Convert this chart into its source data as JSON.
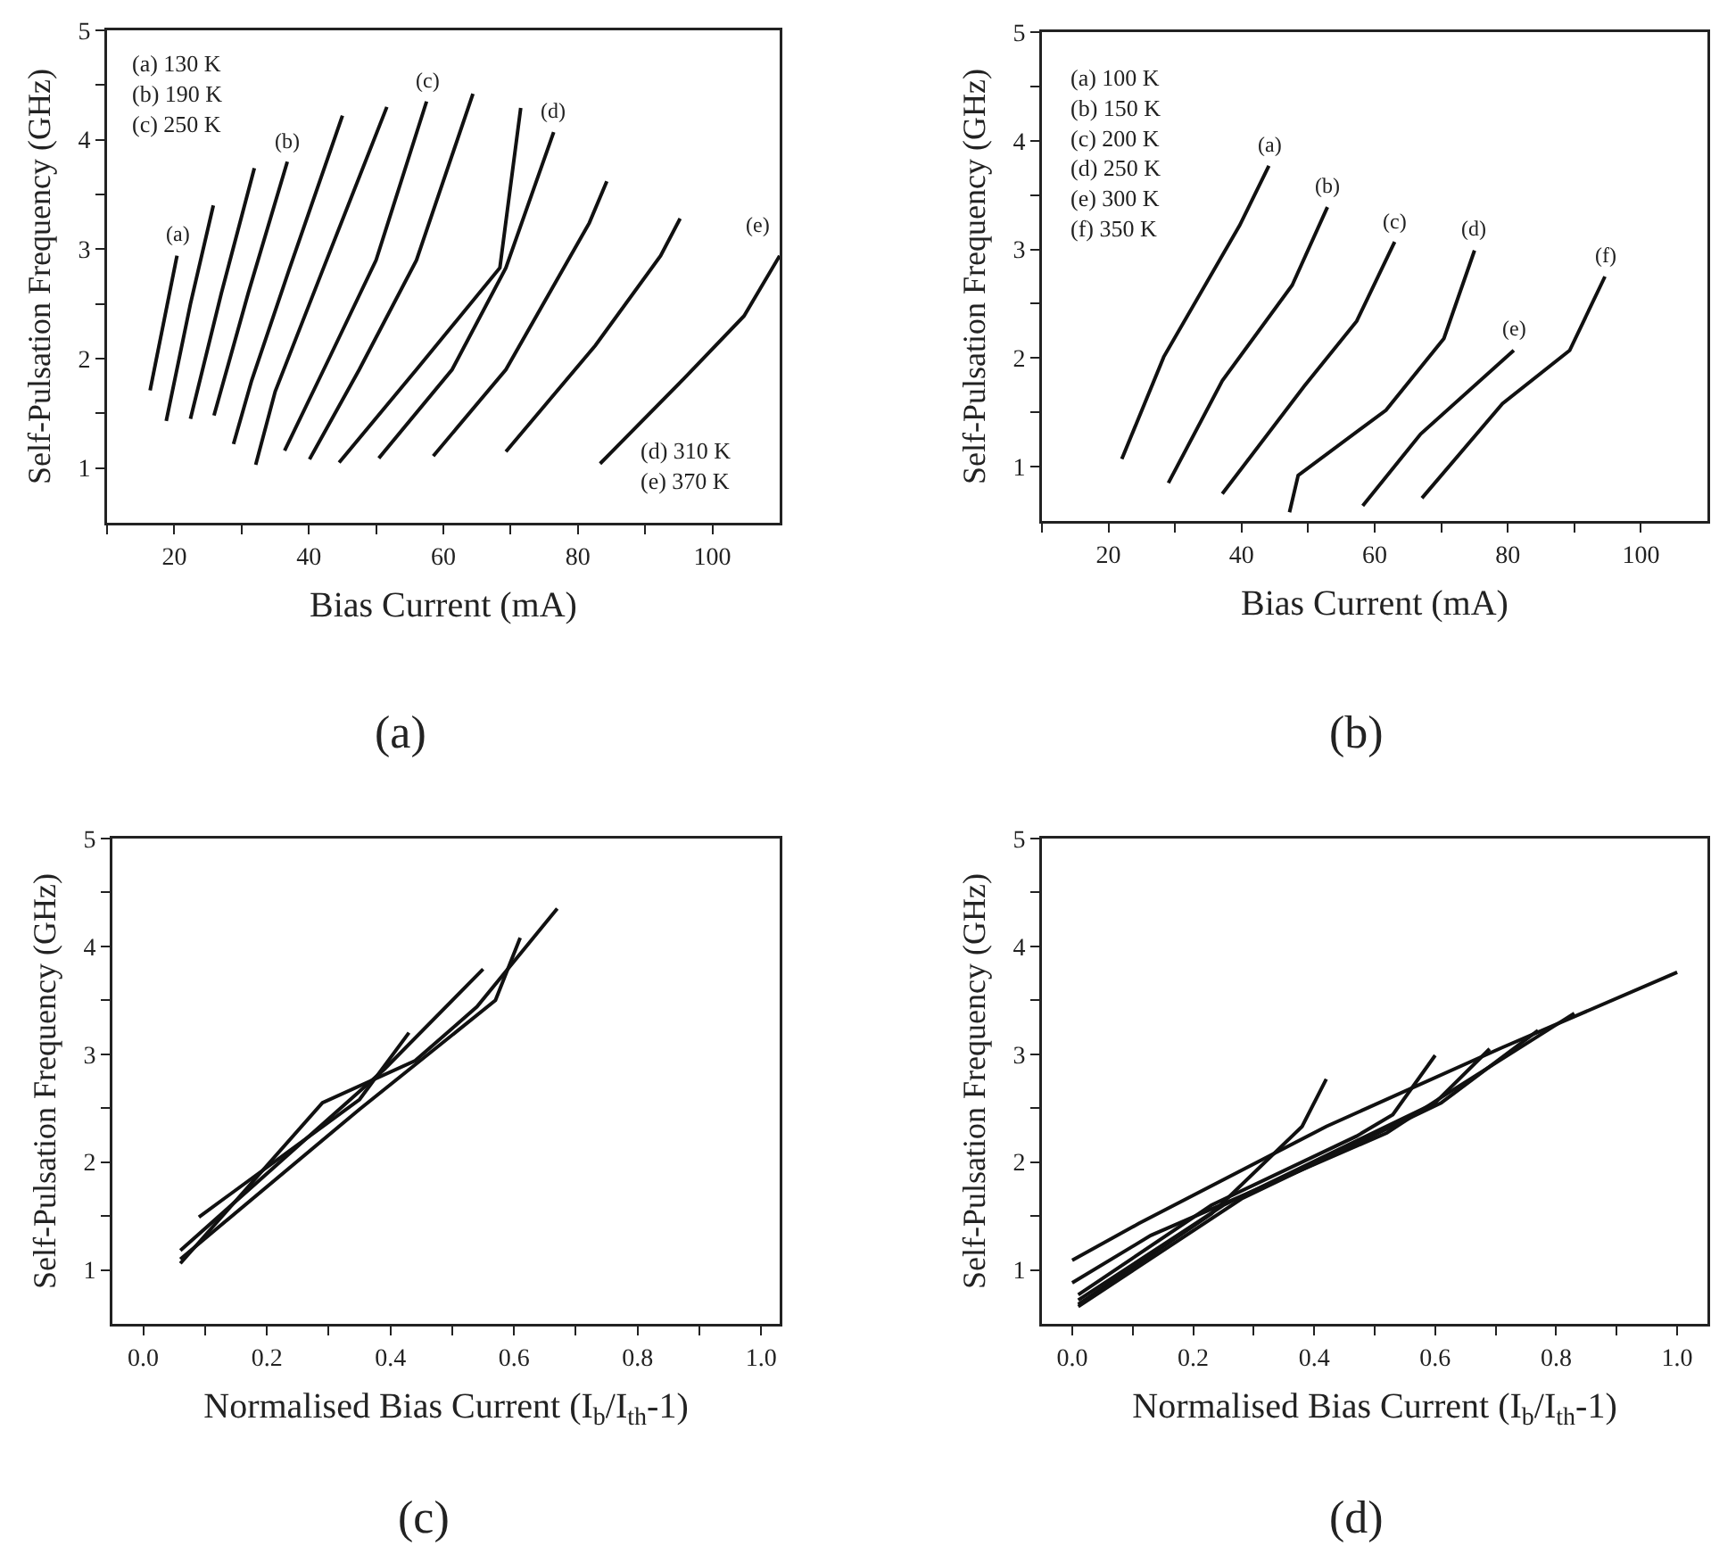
{
  "chart_data": [
    {
      "type": "line",
      "xlabel": "Bias Current (mA)",
      "ylabel": "Self-Pulsation Frequency (GHz)",
      "xlim": [
        10,
        110
      ],
      "ylim": [
        0.5,
        5
      ],
      "xticks": [
        {
          "value": 10,
          "label": null
        },
        20,
        {
          "value": 30,
          "label": null
        },
        40,
        {
          "value": 50,
          "label": null
        },
        60,
        {
          "value": 70,
          "label": null
        },
        80,
        {
          "value": 90,
          "label": null
        },
        100
      ],
      "yticks": [
        1,
        {
          "value": 1.5,
          "label": null
        },
        2,
        {
          "value": 2.5,
          "label": null
        },
        3,
        {
          "value": 3.5,
          "label": null
        },
        4,
        {
          "value": 4.5,
          "label": null
        },
        5
      ],
      "series": [
        {
          "color": "#111111",
          "x": [
            16.4,
            20.4
          ],
          "values": [
            1.71,
            2.94
          ]
        },
        {
          "color": "#111111",
          "x": [
            18.8,
            22.4,
            25.8
          ],
          "values": [
            1.43,
            2.5,
            3.4
          ]
        },
        {
          "color": "#111111",
          "x": [
            22.4,
            27.0,
            31.9
          ],
          "values": [
            1.45,
            2.6,
            3.74
          ]
        },
        {
          "color": "#111111",
          "x": [
            25.9,
            31.0,
            36.8
          ],
          "values": [
            1.48,
            2.6,
            3.8
          ]
        },
        {
          "color": "#111111",
          "x": [
            28.8,
            31.5,
            37.0,
            45.0
          ],
          "values": [
            1.22,
            1.8,
            2.8,
            4.22
          ]
        },
        {
          "color": "#111111",
          "x": [
            32.1,
            35.0,
            42.0,
            51.6
          ],
          "values": [
            1.03,
            1.7,
            2.8,
            4.3
          ]
        },
        {
          "color": "#111111",
          "x": [
            36.4,
            43.0,
            50.0,
            57.5
          ],
          "values": [
            1.16,
            2.0,
            2.9,
            4.35
          ]
        },
        {
          "color": "#111111",
          "x": [
            40.1,
            47.5,
            56.0,
            64.4
          ],
          "values": [
            1.08,
            1.9,
            2.9,
            4.42
          ]
        },
        {
          "color": "#111111",
          "x": [
            44.5,
            56.0,
            68.4,
            71.5
          ],
          "values": [
            1.05,
            1.9,
            2.83,
            4.29
          ]
        },
        {
          "color": "#111111",
          "x": [
            50.4,
            61.3,
            69.3,
            76.4
          ],
          "values": [
            1.09,
            1.9,
            2.83,
            4.07
          ]
        },
        {
          "color": "#111111",
          "x": [
            58.5,
            69.3,
            81.7,
            84.3
          ],
          "values": [
            1.11,
            1.9,
            3.24,
            3.62
          ]
        },
        {
          "color": "#111111",
          "x": [
            69.3,
            82.6,
            92.3,
            95.2
          ],
          "values": [
            1.15,
            2.12,
            2.94,
            3.28
          ]
        },
        {
          "color": "#111111",
          "x": [
            83.3,
            95.8,
            104.7,
            110
          ],
          "values": [
            1.04,
            1.82,
            2.39,
            2.94
          ]
        }
      ],
      "annotations": [
        "(a) 130 K\n(b) 190 K\n(c) 250 K",
        "(d) 310 K\n(e) 370 K",
        "(a)",
        {
          "text": "(a)",
          "x": 20.4,
          "y": 2.94
        },
        {
          "text": "(b)",
          "x": 36.8,
          "y": 3.8
        },
        {
          "text": "(c)",
          "x": 57.5,
          "y": 4.35
        },
        {
          "text": "(d)",
          "x": 76.4,
          "y": 4.07
        },
        {
          "text": "(e)",
          "x": 110,
          "y": 2.94
        }
      ]
    },
    {
      "type": "line",
      "xlabel": "Bias Current (mA)",
      "ylabel": "Self-Pulsation Frequency (GHz)",
      "xlim": [
        10,
        110
      ],
      "ylim": [
        0.5,
        5
      ],
      "xticks": [
        {
          "value": 10,
          "label": null
        },
        20,
        {
          "value": 30,
          "label": null
        },
        40,
        {
          "value": 50,
          "label": null
        },
        60,
        {
          "value": 70,
          "label": null
        },
        80,
        {
          "value": 90,
          "label": null
        },
        100
      ],
      "yticks": [
        1,
        {
          "value": 1.5,
          "label": null
        },
        2,
        {
          "value": 2.5,
          "label": null
        },
        3,
        {
          "value": 3.5,
          "label": null
        },
        4,
        {
          "value": 4.5,
          "label": null
        },
        5
      ],
      "series": [
        {
          "color": "#111111",
          "x": [
            22.0,
            28.3,
            39.7,
            44.1
          ],
          "values": [
            1.07,
            2.01,
            3.22,
            3.77
          ]
        },
        {
          "color": "#111111",
          "x": [
            29.0,
            37.1,
            47.6,
            52.9
          ],
          "values": [
            0.85,
            1.79,
            2.67,
            3.39
          ]
        },
        {
          "color": "#111111",
          "x": [
            37.1,
            49.4,
            57.3,
            63.0
          ],
          "values": [
            0.75,
            1.74,
            2.34,
            3.07
          ]
        },
        {
          "color": "#111111",
          "x": [
            47.2,
            48.5,
            61.7,
            70.4,
            75.0
          ],
          "values": [
            0.58,
            0.92,
            1.52,
            2.18,
            2.99
          ]
        },
        {
          "color": "#111111",
          "x": [
            58.2,
            66.9,
            80.9
          ],
          "values": [
            0.64,
            1.3,
            2.07
          ]
        },
        {
          "color": "#111111",
          "x": [
            67.1,
            79.2,
            89.3,
            94.6
          ],
          "values": [
            0.71,
            1.58,
            2.07,
            2.75
          ]
        }
      ],
      "annotations": [
        "(a) 100 K\n(b) 150 K\n(c) 200 K\n(d) 250 K\n(e) 300 K\n(f) 350 K",
        "(b)",
        {
          "text": "(a)",
          "x": 44.1,
          "y": 3.77
        },
        {
          "text": "(b)",
          "x": 52.9,
          "y": 3.39
        },
        {
          "text": "(c)",
          "x": 63.0,
          "y": 3.07
        },
        {
          "text": "(d)",
          "x": 75.0,
          "y": 2.99
        },
        {
          "text": "(e)",
          "x": 80.9,
          "y": 2.07
        },
        {
          "text": "(f)",
          "x": 94.6,
          "y": 2.75
        }
      ]
    },
    {
      "type": "line",
      "xlabel": "Normalised Bias Current (I$_{b}$/I$_{th}$-1)",
      "ylabel": "Self-Pulsation Frequency (GHz)",
      "xlim": [
        -0.05,
        1.03
      ],
      "ylim": [
        0.5,
        5
      ],
      "xticks": [
        {
          "value": 0,
          "label": "0.0"
        },
        {
          "value": 0.1,
          "label": null
        },
        0.2,
        {
          "value": 0.3,
          "label": null
        },
        0.4,
        {
          "value": 0.5,
          "label": null
        },
        0.6,
        {
          "value": 0.7,
          "label": null
        },
        0.8,
        {
          "value": 0.9,
          "label": null
        },
        {
          "value": 1,
          "label": "1.0"
        }
      ],
      "yticks": [
        1,
        {
          "value": 1.5,
          "label": null
        },
        2,
        {
          "value": 2.5,
          "label": null
        },
        3,
        {
          "value": 3.5,
          "label": null
        },
        4,
        {
          "value": 4.5,
          "label": null
        },
        5
      ],
      "series": [
        {
          "color": "#111111",
          "x": [
            0.06,
            0.29,
            0.44,
            0.54,
            0.67
          ],
          "values": [
            1.06,
            2.55,
            2.94,
            3.44,
            4.35
          ]
        },
        {
          "color": "#111111",
          "x": [
            0.06,
            0.35,
            0.57,
            0.61
          ],
          "values": [
            1.1,
            2.49,
            3.5,
            4.08
          ]
        },
        {
          "color": "#111111",
          "x": [
            0.06,
            0.39,
            0.55
          ],
          "values": [
            1.18,
            2.86,
            3.79
          ]
        },
        {
          "color": "#111111",
          "x": [
            0.09,
            0.35,
            0.43
          ],
          "values": [
            1.49,
            2.58,
            3.2
          ]
        }
      ],
      "annotations": [
        "(c)"
      ]
    },
    {
      "type": "line",
      "xlabel": "Normalised Bias Current (I$_{b}$/I$_{th}$-1)",
      "ylabel": "Self-Pulsation Frequency (GHz)",
      "xlim": [
        -0.05,
        1.05
      ],
      "ylim": [
        0.5,
        5
      ],
      "xticks": [
        {
          "value": 0,
          "label": "0.0"
        },
        {
          "value": 0.1,
          "label": null
        },
        0.2,
        {
          "value": 0.3,
          "label": null
        },
        0.4,
        {
          "value": 0.5,
          "label": null
        },
        0.6,
        {
          "value": 0.7,
          "label": null
        },
        0.8,
        {
          "value": 0.9,
          "label": null
        },
        {
          "value": 1,
          "label": "1.0"
        }
      ],
      "yticks": [
        1,
        {
          "value": 1.5,
          "label": null
        },
        2,
        {
          "value": 2.5,
          "label": null
        },
        3,
        {
          "value": 3.5,
          "label": null
        },
        4,
        {
          "value": 4.5,
          "label": null
        },
        5
      ],
      "series": [
        {
          "color": "#111111",
          "x": [
            0.0,
            0.11,
            0.42,
            0.71,
            1.0
          ],
          "values": [
            1.09,
            1.43,
            2.33,
            3.06,
            3.76
          ]
        },
        {
          "color": "#111111",
          "x": [
            0.0,
            0.13,
            0.52,
            0.61,
            0.83
          ],
          "values": [
            0.88,
            1.32,
            2.27,
            2.6,
            3.38
          ]
        },
        {
          "color": "#111111",
          "x": [
            0.01,
            0.23,
            0.47,
            0.53,
            0.6
          ],
          "values": [
            0.77,
            1.6,
            2.24,
            2.44,
            2.99
          ]
        },
        {
          "color": "#111111",
          "x": [
            0.01,
            0.23,
            0.38,
            0.42
          ],
          "values": [
            0.68,
            1.52,
            2.33,
            2.77
          ]
        },
        {
          "color": "#111111",
          "x": [
            0.01,
            0.25,
            0.6,
            0.69
          ],
          "values": [
            0.72,
            1.6,
            2.55,
            3.05
          ]
        },
        {
          "color": "#111111",
          "x": [
            0.01,
            0.28,
            0.61,
            0.77
          ],
          "values": [
            0.66,
            1.66,
            2.55,
            3.22
          ]
        }
      ],
      "annotations": [
        "(d)"
      ]
    }
  ]
}
